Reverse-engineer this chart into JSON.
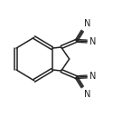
{
  "background_color": "#ffffff",
  "line_color": "#222222",
  "text_color": "#222222",
  "font_size": 7.0,
  "line_width": 1.1,
  "figsize": [
    1.25,
    1.3
  ],
  "dpi": 100,
  "xlim": [
    0.0,
    1.0
  ],
  "ylim": [
    0.0,
    1.0
  ]
}
